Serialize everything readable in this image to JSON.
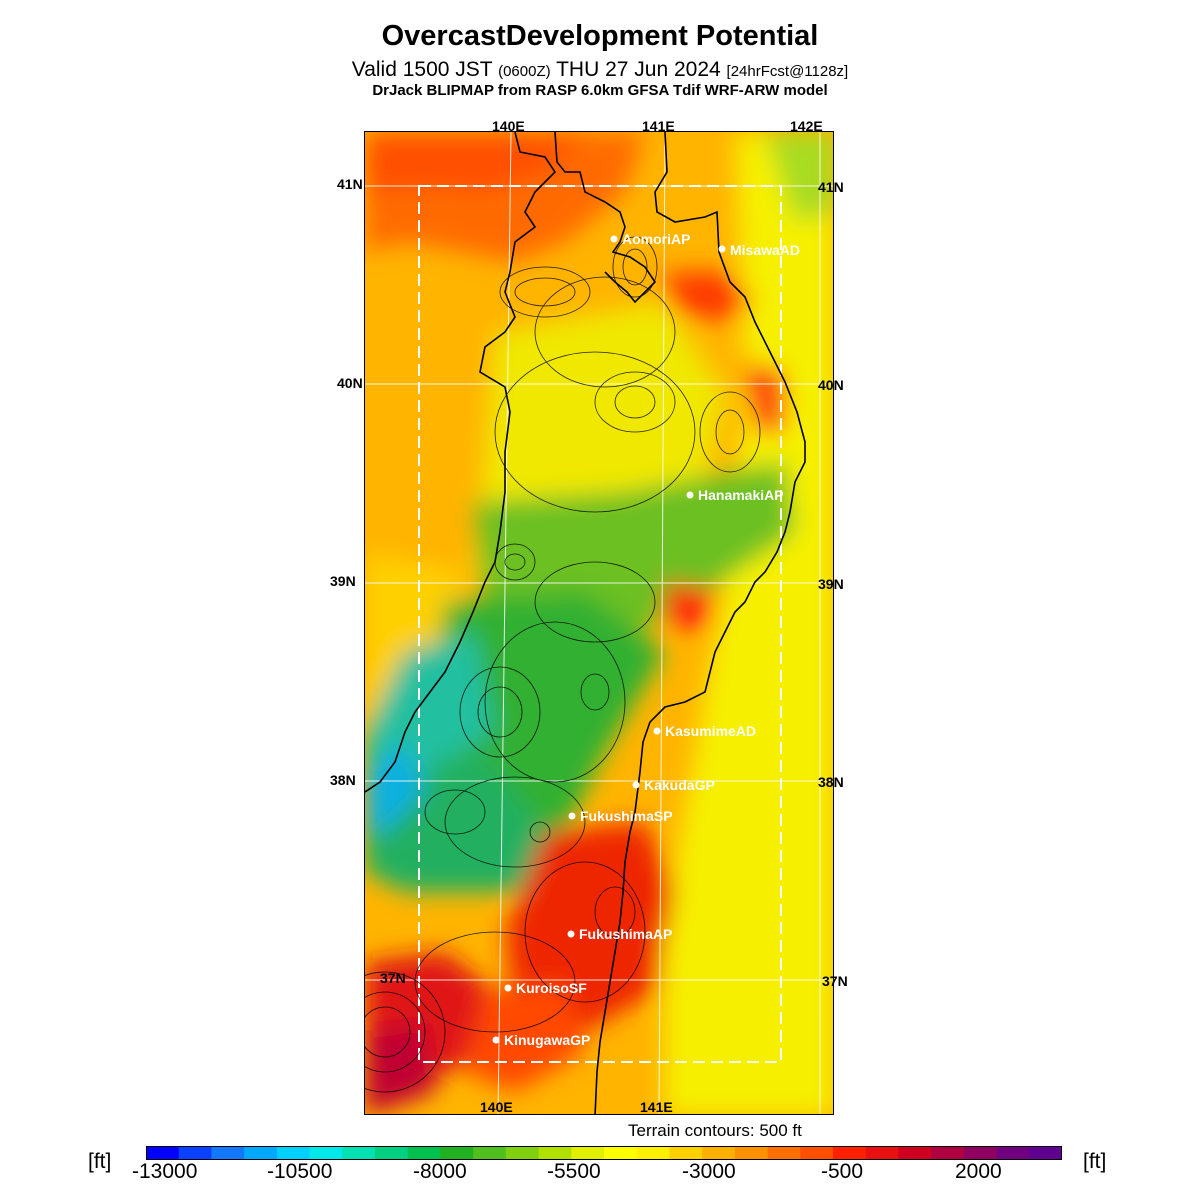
{
  "header": {
    "title": "OvercastDevelopment Potential",
    "valid_prefix": "Valid 1500 JST",
    "valid_utc": "(0600Z)",
    "valid_date": "THU 27 Jun 2024",
    "forecast": "[24hrFcst@1128z]",
    "model": "DrJack BLIPMAP from RASP 6.0km GFSA Tdif WRF-ARW model"
  },
  "map": {
    "lon_labels": [
      "140E",
      "141E",
      "142E"
    ],
    "lat_labels": [
      "41N",
      "40N",
      "39N",
      "38N",
      "37N"
    ],
    "sites": [
      "AomoriAP",
      "MisawaAD",
      "HanamakiAP",
      "KasumimeAD",
      "KakudaGP",
      "FukushimaSP",
      "FukushimaAP",
      "KuroisoSF",
      "KinugawaGP"
    ],
    "terrain_note": "Terrain contours: 500 ft"
  },
  "colorbar": {
    "unit": "[ft]",
    "tick_labels": [
      "-13000",
      "-10500",
      "-8000",
      "-5500",
      "-3000",
      "-500",
      "2000"
    ],
    "colors": [
      "#0000ff",
      "#0a40ff",
      "#1478ff",
      "#00a8ff",
      "#00d0ff",
      "#00e8e8",
      "#00e0b0",
      "#00d080",
      "#00c050",
      "#20b020",
      "#50c020",
      "#80d010",
      "#b0e000",
      "#e0f000",
      "#ffff00",
      "#fff000",
      "#ffd000",
      "#ffb000",
      "#ff9000",
      "#ff7000",
      "#ff5000",
      "#ff2000",
      "#e81010",
      "#d00020",
      "#b00040",
      "#900060",
      "#700080",
      "#600090"
    ]
  }
}
